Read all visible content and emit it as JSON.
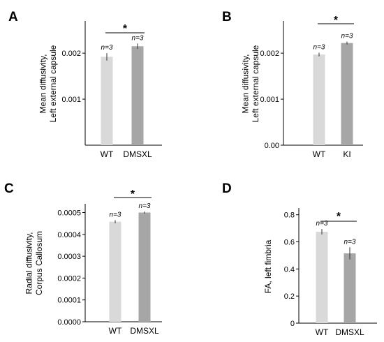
{
  "colors": {
    "wt_bar": "#d9d9d9",
    "mutant_bar": "#a6a6a6",
    "error_bar": "#333333",
    "axis": "#000000"
  },
  "chart_data": [
    {
      "panel": "A",
      "type": "bar",
      "ylabel_lines": [
        "Mean diffusivity,",
        "Left external capsule"
      ],
      "categories": [
        "WT",
        "DMSXL"
      ],
      "values": [
        0.00192,
        0.00215
      ],
      "errors": [
        8e-05,
        6e-05
      ],
      "annotations": [
        "n=3",
        "n=3"
      ],
      "ylim": [
        0,
        0.0027
      ],
      "yticks": [
        0.001,
        0.002
      ],
      "ytick_labels": [
        "0.001",
        "0.002"
      ],
      "significance": "*"
    },
    {
      "panel": "B",
      "type": "bar",
      "ylabel_lines": [
        "Mean diffusivity,",
        "Left external capsule"
      ],
      "categories": [
        "WT",
        "KI"
      ],
      "values": [
        0.00197,
        0.00222
      ],
      "errors": [
        4e-05,
        3e-05
      ],
      "annotations": [
        "n=3",
        "n=3"
      ],
      "ylim": [
        0,
        0.0027
      ],
      "yticks": [
        0,
        0.001,
        0.002
      ],
      "ytick_labels": [
        "0.00",
        "0.001",
        "0.002"
      ],
      "significance": "*"
    },
    {
      "panel": "C",
      "type": "bar",
      "ylabel_lines": [
        "Radial diffusivity,",
        "Corpus Callosum"
      ],
      "categories": [
        "WT",
        "DMSXL"
      ],
      "values": [
        0.000458,
        0.0005
      ],
      "errors": [
        7e-06,
        5e-06
      ],
      "annotations": [
        "n=3",
        "n=3"
      ],
      "ylim": [
        0,
        0.00054
      ],
      "yticks": [
        0,
        0.0001,
        0.0002,
        0.0003,
        0.0004,
        0.0005
      ],
      "ytick_labels": [
        "0.0000",
        "0.0001",
        "0.0002",
        "0.0003",
        "0.0004",
        "0.0005"
      ],
      "significance": "*"
    },
    {
      "panel": "D",
      "type": "bar",
      "ylabel_lines": [
        "FA, left fimbria"
      ],
      "categories": [
        "WT",
        "DMSXL"
      ],
      "values": [
        0.675,
        0.515
      ],
      "errors": [
        0.02,
        0.045
      ],
      "annotations": [
        "n=3",
        "n=3"
      ],
      "ylim": [
        0,
        0.85
      ],
      "yticks": [
        0,
        0.2,
        0.4,
        0.6,
        0.8
      ],
      "ytick_labels": [
        "0",
        "0.2",
        "0.4",
        "0.6",
        "0.8"
      ],
      "significance": "*"
    }
  ]
}
